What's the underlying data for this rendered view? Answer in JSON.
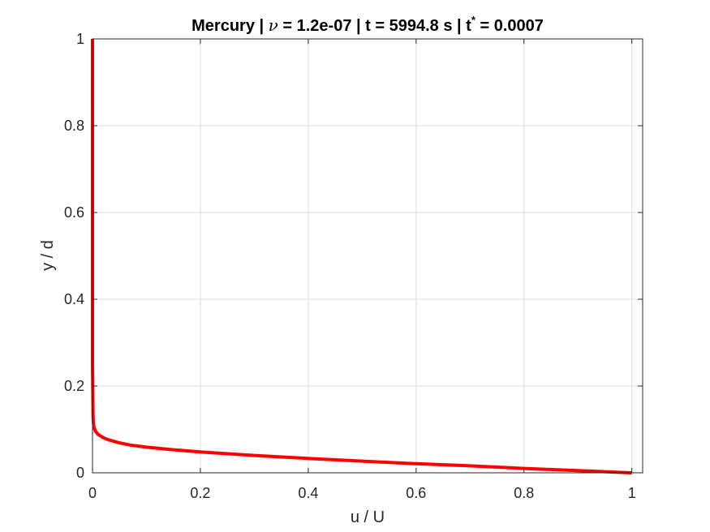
{
  "chart_data": {
    "type": "line",
    "title": {
      "prefix": "Mercury | ",
      "symbol": "ν",
      "middle": " = 1.2e-07 | t = 5994.8 s | t",
      "superscript": "*",
      "suffix": " = 0.0007"
    },
    "xlabel": "u / U",
    "ylabel": "y / d",
    "xlim": [
      0,
      1.02
    ],
    "ylim": [
      0,
      1
    ],
    "xticks": [
      0,
      0.2,
      0.4,
      0.6,
      0.8,
      1
    ],
    "xtick_labels": [
      "0",
      "0.2",
      "0.4",
      "0.6",
      "0.8",
      "1"
    ],
    "yticks": [
      0,
      0.2,
      0.4,
      0.6,
      0.8,
      1
    ],
    "ytick_labels": [
      "0",
      "0.2",
      "0.4",
      "0.6",
      "0.8",
      "1"
    ],
    "grid": true,
    "box": true,
    "series": [
      {
        "color": "#ff0000",
        "x": [
          1.0,
          0.9,
          0.8,
          0.7,
          0.6,
          0.5,
          0.4,
          0.3,
          0.2,
          0.15,
          0.1,
          0.07,
          0.05,
          0.03,
          0.02,
          0.01,
          0.005,
          0.003,
          0.002,
          0.001,
          0.0,
          0.0
        ],
        "y": [
          0.0,
          0.005,
          0.01,
          0.016,
          0.021,
          0.027,
          0.033,
          0.04,
          0.048,
          0.053,
          0.059,
          0.064,
          0.069,
          0.076,
          0.081,
          0.089,
          0.097,
          0.104,
          0.112,
          0.13,
          0.25,
          1.0
        ]
      }
    ]
  }
}
